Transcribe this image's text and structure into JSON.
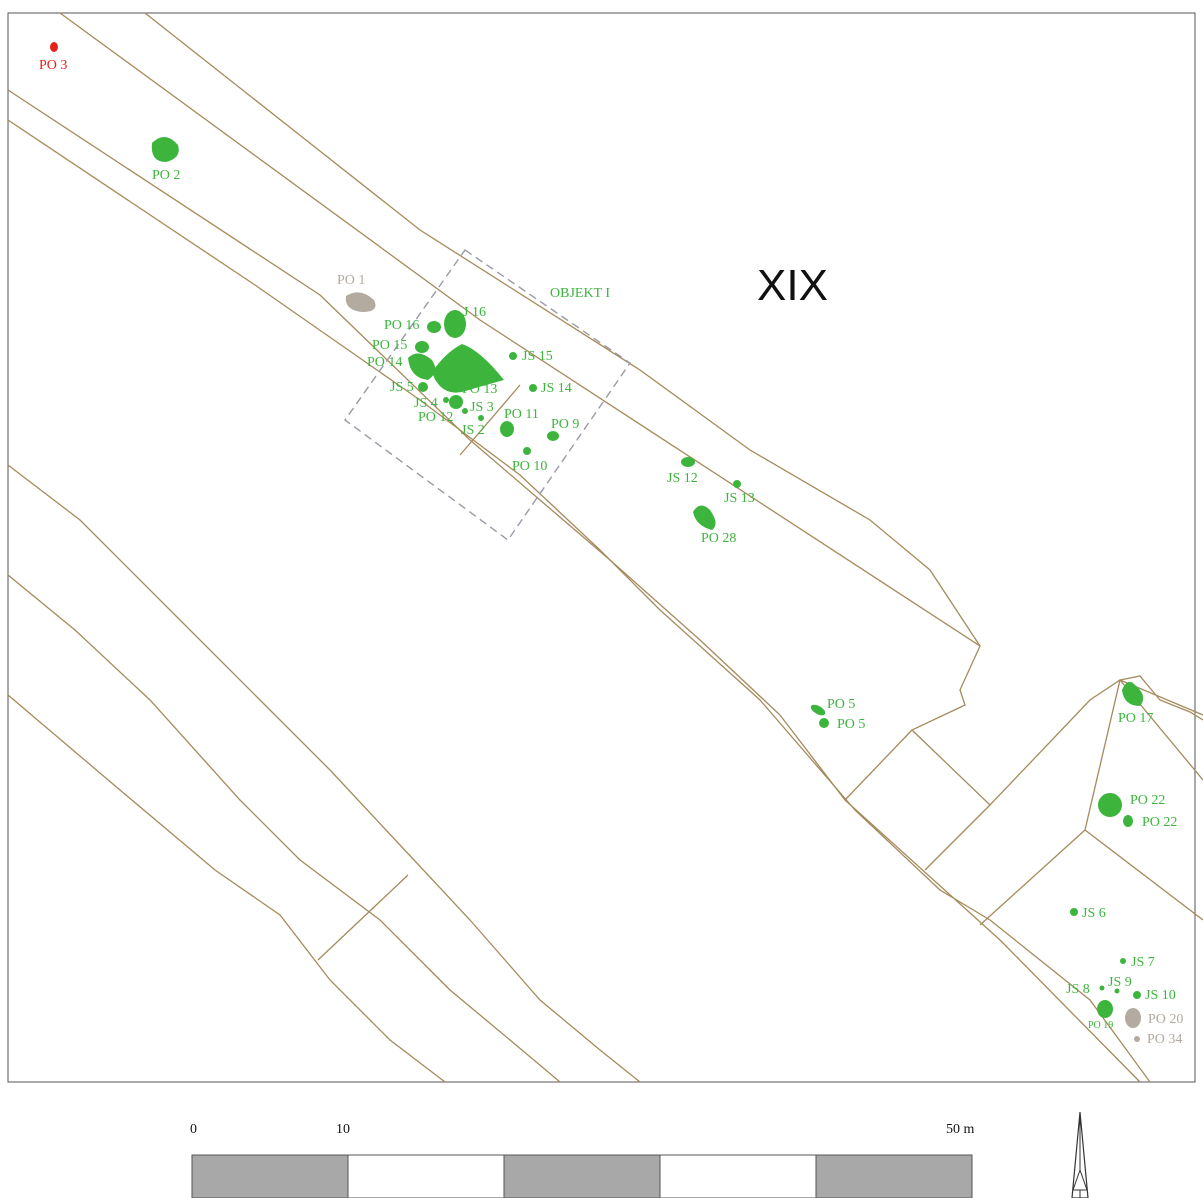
{
  "map": {
    "sector_label": "XIX",
    "object_label": "OBJEKT I",
    "features": {
      "po3": "PO 3",
      "po2": "PO 2",
      "po1": "PO 1",
      "j16": "J 16",
      "po16": "PO 16",
      "po15": "PO 15",
      "po14": "PO 14",
      "js15": "JS 15",
      "js5": "JS 5",
      "po13": "PO 13",
      "js14": "JS 14",
      "js4": "JS 4",
      "js3": "JS 3",
      "po12": "PO 12",
      "po11": "PO 11",
      "js2": "JS 2",
      "po9": "PO 9",
      "po10": "PO 10",
      "js12": "JS 12",
      "js13": "JS 13",
      "po28": "PO 28",
      "po5a": "PO 5",
      "po5b": "PO 5",
      "po17": "PO 17",
      "po22a": "PO 22",
      "po22b": "PO 22",
      "js6": "JS 6",
      "js7": "JS 7",
      "js8": "JS 8",
      "js9": "JS 9",
      "js10": "JS 10",
      "po19": "PO 19",
      "po20": "PO 20",
      "po34": "PO 34"
    },
    "colors": {
      "feature_green": "#3db53d",
      "feature_gray": "#b3aaa0",
      "feature_red": "#e8201a",
      "plot_boundary": "#a58a5c",
      "object_outline": "#9a9aa8"
    }
  },
  "scale_bar": {
    "label_start": "0",
    "label_mid": "10",
    "label_end": "50 m",
    "segments": 5
  },
  "north_arrow": {
    "icon": "north-arrow-icon"
  }
}
